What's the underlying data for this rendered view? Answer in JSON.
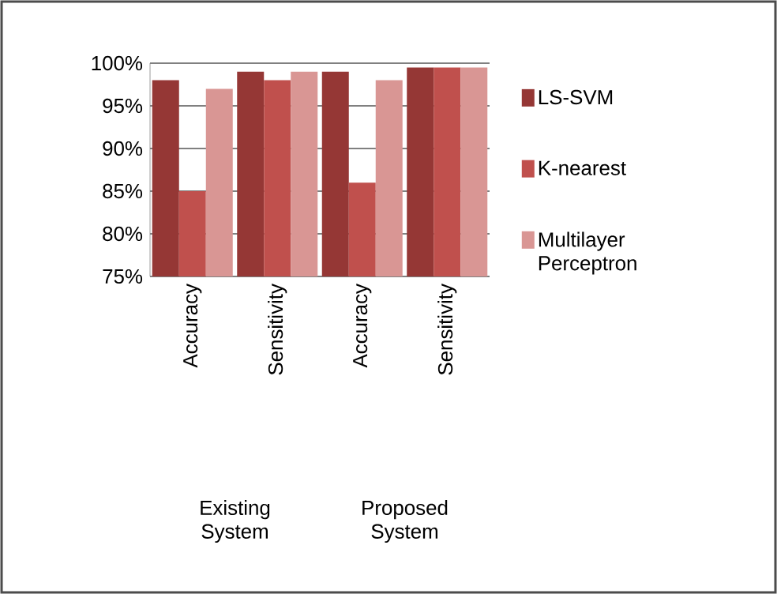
{
  "chart_data": {
    "type": "bar",
    "categories": [
      "Accuracy",
      "Sensitivity",
      "Accuracy",
      "Sensitivity"
    ],
    "series": [
      {
        "name": "LS-SVM",
        "color": "#953735",
        "values": [
          98,
          99,
          99,
          99.5
        ]
      },
      {
        "name": "K-nearest",
        "color": "#c0504d",
        "values": [
          85,
          98,
          86,
          99.5
        ]
      },
      {
        "name": "Multilayer Perceptron",
        "color": "#d99694",
        "values": [
          97,
          99,
          98,
          99.5
        ]
      }
    ],
    "ylim": [
      75,
      100
    ],
    "yticks": [
      {
        "value": 75,
        "label": "75%"
      },
      {
        "value": 80,
        "label": "80%"
      },
      {
        "value": 85,
        "label": "85%"
      },
      {
        "value": 90,
        "label": "90%"
      },
      {
        "value": 95,
        "label": "95%"
      },
      {
        "value": 100,
        "label": "100%"
      }
    ],
    "grid": "y",
    "legend": "right",
    "annotations": [
      "Existing System",
      "Proposed System"
    ]
  }
}
